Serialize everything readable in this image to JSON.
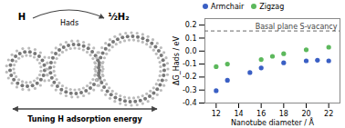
{
  "chart_data": {
    "type": "scatter",
    "xlabel": "Nanotube diameter / Å",
    "ylabel": "ΔG_Hads / eV",
    "series": [
      {
        "name": "Armchair",
        "color": "#3a5fc4",
        "x": [
          12,
          13,
          15,
          16,
          18,
          20,
          21,
          22
        ],
        "values": [
          -0.305,
          -0.225,
          -0.165,
          -0.13,
          -0.09,
          -0.075,
          -0.07,
          -0.075
        ]
      },
      {
        "name": "Zigzag",
        "color": "#5cb85c",
        "x": [
          12,
          13,
          16,
          17,
          18,
          20,
          22
        ],
        "values": [
          -0.12,
          -0.1,
          -0.065,
          -0.04,
          -0.02,
          0.01,
          0.03
        ]
      }
    ],
    "xlim": [
      11,
      23
    ],
    "ylim": [
      -0.4,
      0.25
    ],
    "xticks": [
      12,
      14,
      16,
      18,
      20,
      22
    ],
    "yticks": [
      -0.4,
      -0.3,
      -0.2,
      -0.1,
      {
        "value": 0,
        "label": "0.0"
      },
      0.1,
      0.2
    ],
    "legend": "upper left",
    "reference_lines": [
      {
        "y": 0.155,
        "label": "Basal plane S-vacancy",
        "line_style": "dashed"
      }
    ],
    "annotations": [
      "H",
      "½H₂",
      "Hads",
      "Tuning H adsorption energy"
    ]
  }
}
